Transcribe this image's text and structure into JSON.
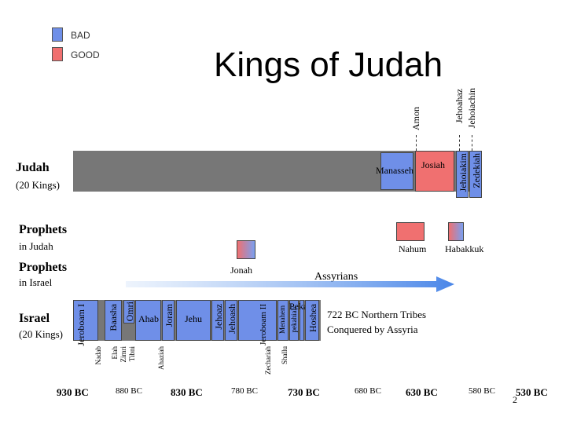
{
  "legend": {
    "bad": {
      "label": "BAD",
      "color": "#6f8fe8"
    },
    "good": {
      "label": "GOOD",
      "color": "#f07070"
    }
  },
  "title": "Kings of Judah",
  "judah": {
    "label": "Judah",
    "sublabel": "(20 Kings)",
    "kings": {
      "manasseh": "Manasseh",
      "josiah": "Josiah",
      "amon": "Amon",
      "jehoahaz": "Jehoahaz",
      "jehoiachin": "Jehoiachin",
      "jehoiakim": "Jehoiakim",
      "zedekiah": "Zedekiah"
    }
  },
  "prophets_judah": {
    "label": "Prophets",
    "sublabel": "in Judah",
    "nahum": "Nahum",
    "habakkuk": "Habakkuk"
  },
  "prophets_israel": {
    "label": "Prophets",
    "sublabel": "in Israel",
    "jonah": "Jonah",
    "assyrians": "Assyrians"
  },
  "israel": {
    "label": "Israel",
    "sublabel": "(20 Kings)",
    "kings": {
      "jeroboam1": "Jeroboam I",
      "nadab": "Nadab",
      "baasha": "Baasha",
      "elah": "Elah",
      "zimri": "Zimri",
      "tibni": "Tibni",
      "omri": "Omri",
      "ahab": "Ahab",
      "ahaziah": "Ahaziah",
      "joram": "Joram",
      "jehu": "Jehu",
      "jehoaz": "Jehoaz",
      "jehoash": "Jehoash",
      "jeroboam2": "Jeroboam II",
      "zechariah": "Zechariah",
      "shallum": "Shallu",
      "menahem": "Menahem",
      "pekahiah": "pekahiah",
      "pekah": "Pekah",
      "hoshea": "Hoshea"
    },
    "note_line1": "722 BC Northern Tribes",
    "note_line2": "Conquered by Assyria"
  },
  "timeline": [
    "930 BC",
    "880 BC",
    "830 BC",
    "780 BC",
    "730 BC",
    "680 BC",
    "630 BC",
    "580 BC",
    "530 BC"
  ],
  "page_number": "2"
}
